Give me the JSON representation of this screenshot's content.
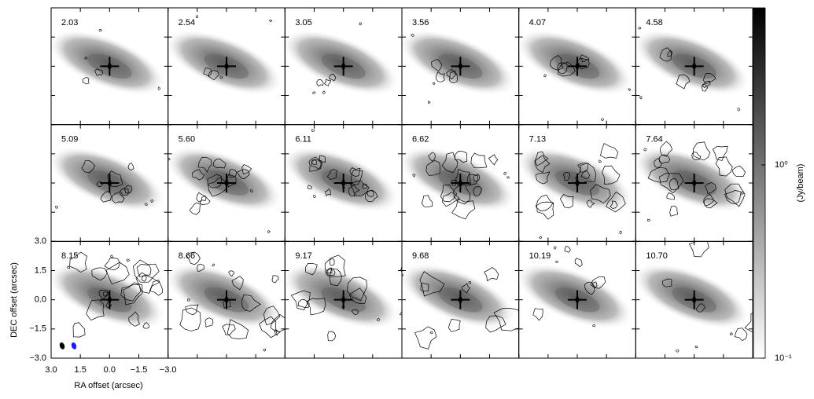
{
  "chart_data": {
    "type": "channel-maps",
    "x_label": "RA offset (arcsec)",
    "y_label": "DEC offset (arcsec)",
    "xlim": [
      3,
      -3
    ],
    "ylim": [
      -3,
      3
    ],
    "xticks": [
      {
        "value": 3,
        "label": "3.0"
      },
      {
        "value": 1.5,
        "label": "1.5"
      },
      {
        "value": 0,
        "label": "0.0"
      },
      {
        "value": -1.5,
        "label": "−1.5"
      },
      {
        "value": -3,
        "label": "−3.0"
      }
    ],
    "yticks": [
      {
        "value": 3,
        "label": "3.0"
      },
      {
        "value": 1.5,
        "label": "1.5"
      },
      {
        "value": 0,
        "label": "0.0"
      },
      {
        "value": -1.5,
        "label": "−1.5"
      },
      {
        "value": -3,
        "label": "−3.0"
      }
    ],
    "panels": [
      "2.03",
      "2.54",
      "3.05",
      "3.56",
      "4.07",
      "4.58",
      "5.09",
      "5.60",
      "6.11",
      "6.62",
      "7.13",
      "7.64",
      "8.15",
      "8.66",
      "9.17",
      "9.68",
      "10.19",
      "10.70"
    ],
    "colorbar": {
      "label": "(Jy/beam)",
      "log": true,
      "lim": [
        0.1,
        6.5
      ],
      "ticks": [
        {
          "value": 0.1,
          "label": "10⁻¹"
        },
        {
          "value": 1,
          "label": "10⁰"
        }
      ],
      "colormap": [
        "#ffffff",
        "#000000"
      ]
    }
  }
}
